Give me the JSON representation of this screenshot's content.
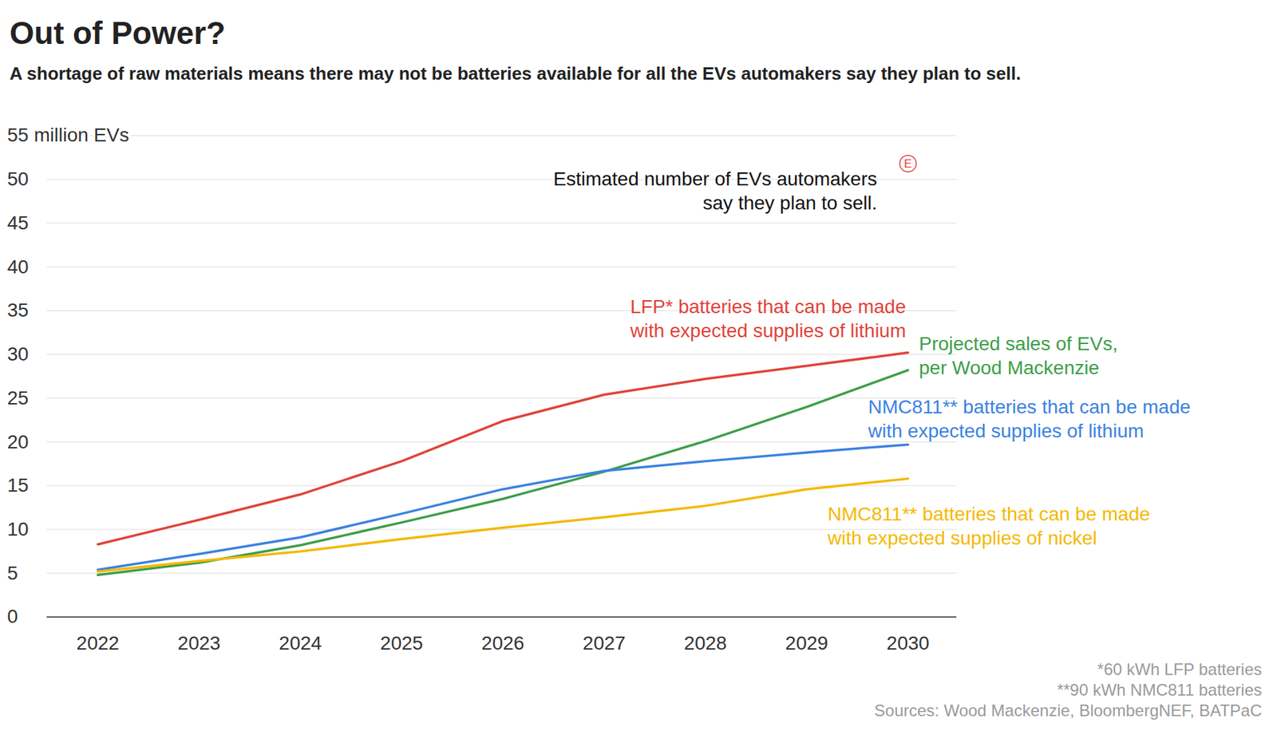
{
  "chart_data": {
    "type": "line",
    "title": "Out of Power?",
    "subtitle": "A shortage of raw materials means there may not be batteries available for all the EVs automakers say they plan to sell.",
    "x": [
      2022,
      2023,
      2024,
      2025,
      2026,
      2027,
      2028,
      2029,
      2030
    ],
    "xlim": [
      2022,
      2030
    ],
    "xticks": [
      2022,
      2023,
      2024,
      2025,
      2026,
      2027,
      2028,
      2029,
      2030
    ],
    "ylim": [
      0,
      55
    ],
    "yticks": [
      0,
      5,
      10,
      15,
      20,
      25,
      30,
      35,
      40,
      45,
      50,
      {
        "value": 55,
        "label": "55 million EVs"
      }
    ],
    "grid": true,
    "series": [
      {
        "name": "LFP* batteries that can be made\nwith expected supplies of lithium",
        "color": "#e0433a",
        "values": [
          8.3,
          11.1,
          14.0,
          17.8,
          22.4,
          25.4,
          27.2,
          28.7,
          30.2
        ]
      },
      {
        "name": "Projected sales of EVs,\nper Wood Mackenzie",
        "color": "#3d9e4a",
        "values": [
          4.8,
          6.2,
          8.2,
          10.8,
          13.5,
          16.6,
          20.1,
          24.0,
          28.2
        ]
      },
      {
        "name": "NMC811** batteries that can be made\nwith expected supplies of lithium",
        "color": "#3b82e0",
        "values": [
          5.4,
          7.2,
          9.1,
          11.8,
          14.6,
          16.7,
          17.8,
          18.8,
          19.7
        ]
      },
      {
        "name": "NMC811** batteries that can be made\nwith expected supplies of nickel",
        "color": "#f5b800",
        "values": [
          5.2,
          6.4,
          7.5,
          8.9,
          10.2,
          11.4,
          12.7,
          14.6,
          15.8
        ]
      }
    ],
    "annotations": [
      {
        "text": "Estimated number of EVs automakers\nsay they plan to sell.",
        "x": 2030,
        "y": 51.8,
        "marker_label": "E",
        "color": "#e0433a"
      }
    ],
    "notes": [
      "*60 kWh LFP batteries",
      "**90 kWh NMC811 batteries"
    ],
    "source": "Sources: Wood Mackenzie, BloombergNEF, BATPaC"
  }
}
